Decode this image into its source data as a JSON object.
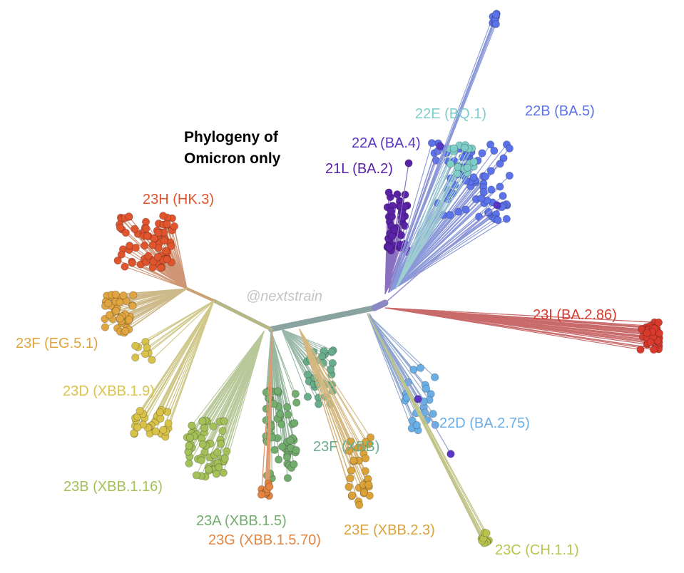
{
  "title": {
    "line1": "Phylogeny of",
    "line2": "Omicron only"
  },
  "watermark": "@nextstrain",
  "clades": [
    {
      "id": "22B",
      "label": "22B (BA.5)",
      "color": "#5b72ea"
    },
    {
      "id": "22E",
      "label": "22E (BQ.1)",
      "color": "#7ecdc8"
    },
    {
      "id": "22A",
      "label": "22A (BA.4)",
      "color": "#5a36c4"
    },
    {
      "id": "21L",
      "label": "21L (BA.2)",
      "color": "#5a22a6"
    },
    {
      "id": "23H",
      "label": "23H (HK.3)",
      "color": "#e0552e"
    },
    {
      "id": "23I",
      "label": "23I (BA.2.86)",
      "color": "#d93a2e"
    },
    {
      "id": "23F1",
      "label": "23F (EG.5.1)",
      "color": "#e0a540"
    },
    {
      "id": "23D",
      "label": "23D (XBB.1.9)",
      "color": "#d8c24a"
    },
    {
      "id": "22D",
      "label": "22D (BA.2.75)",
      "color": "#6aaee6"
    },
    {
      "id": "23F2",
      "label": "23F (XBB)",
      "color": "#68ad8c"
    },
    {
      "id": "23B",
      "label": "23B (XBB.1.16)",
      "color": "#a4c058"
    },
    {
      "id": "23A",
      "label": "23A (XBB.1.5)",
      "color": "#72ad6e"
    },
    {
      "id": "23G",
      "label": "23G (XBB.1.5.70)",
      "color": "#e38540"
    },
    {
      "id": "23E",
      "label": "23E (XBB.2.3)",
      "color": "#dba238"
    },
    {
      "id": "23C",
      "label": "23C (CH.1.1)",
      "color": "#b9c44e"
    }
  ]
}
